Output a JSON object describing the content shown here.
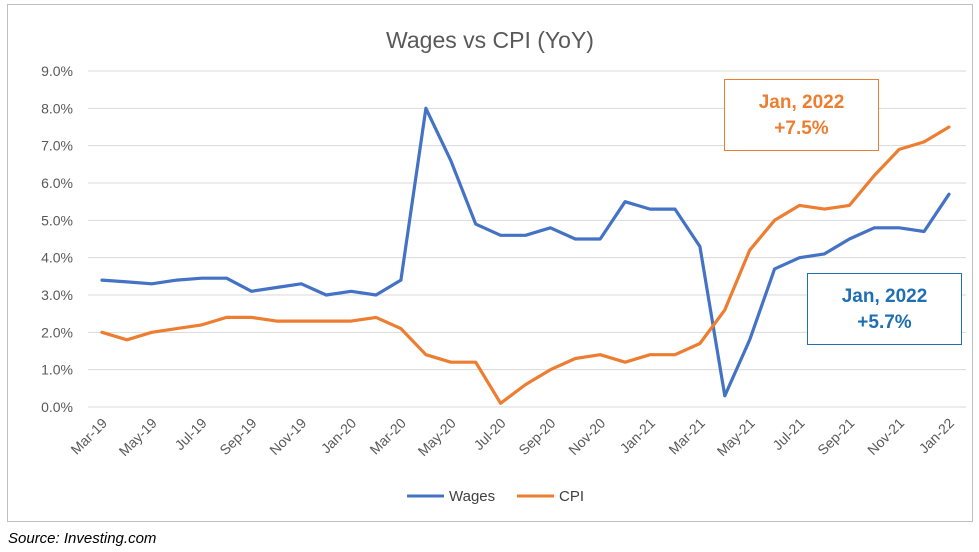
{
  "chart_data": {
    "type": "line",
    "title": "Wages vs CPI (YoY)",
    "xlabel": "",
    "ylabel": "",
    "ylim": [
      0,
      9
    ],
    "yticks": [
      "0.0%",
      "1.0%",
      "2.0%",
      "3.0%",
      "4.0%",
      "5.0%",
      "6.0%",
      "7.0%",
      "8.0%",
      "9.0%"
    ],
    "x": [
      "Mar-19",
      "Apr-19",
      "May-19",
      "Jun-19",
      "Jul-19",
      "Aug-19",
      "Sep-19",
      "Oct-19",
      "Nov-19",
      "Dec-19",
      "Jan-20",
      "Feb-20",
      "Mar-20",
      "Apr-20",
      "May-20",
      "Jun-20",
      "Jul-20",
      "Aug-20",
      "Sep-20",
      "Oct-20",
      "Nov-20",
      "Dec-20",
      "Jan-21",
      "Feb-21",
      "Mar-21",
      "Apr-21",
      "May-21",
      "Jun-21",
      "Jul-21",
      "Aug-21",
      "Sep-21",
      "Oct-21",
      "Nov-21",
      "Dec-21",
      "Jan-22"
    ],
    "xtick_labels": [
      "Mar-19",
      "May-19",
      "Jul-19",
      "Sep-19",
      "Nov-19",
      "Jan-20",
      "Mar-20",
      "May-20",
      "Jul-20",
      "Sep-20",
      "Nov-20",
      "Jan-21",
      "Mar-21",
      "May-21",
      "Jul-21",
      "Sep-21",
      "Nov-21",
      "Jan-22"
    ],
    "series": [
      {
        "name": "Wages",
        "color": "#4472c4",
        "values": [
          3.4,
          3.35,
          3.3,
          3.4,
          3.45,
          3.45,
          3.1,
          3.2,
          3.3,
          3.0,
          3.1,
          3.0,
          3.4,
          8.0,
          6.6,
          4.9,
          4.6,
          4.6,
          4.8,
          4.5,
          4.5,
          5.5,
          5.3,
          5.3,
          4.3,
          0.3,
          1.8,
          3.7,
          4.0,
          4.1,
          4.5,
          4.8,
          4.8,
          4.7,
          5.7
        ]
      },
      {
        "name": "CPI",
        "color": "#ed7d31",
        "values": [
          2.0,
          1.8,
          2.0,
          2.1,
          2.2,
          2.4,
          2.4,
          2.3,
          2.3,
          2.3,
          2.3,
          2.4,
          2.1,
          1.4,
          1.2,
          1.2,
          0.1,
          0.6,
          1.0,
          1.3,
          1.4,
          1.2,
          1.4,
          1.4,
          1.7,
          2.6,
          4.2,
          5.0,
          5.4,
          5.3,
          5.4,
          6.2,
          6.9,
          7.1,
          7.5
        ]
      }
    ],
    "grid": true,
    "legend": "bottom"
  },
  "callouts": {
    "cpi": {
      "line1": "Jan, 2022",
      "line2": "+7.5%"
    },
    "wages": {
      "line1": "Jan, 2022",
      "line2": "+5.7%"
    }
  },
  "source": "Source:  Investing.com"
}
